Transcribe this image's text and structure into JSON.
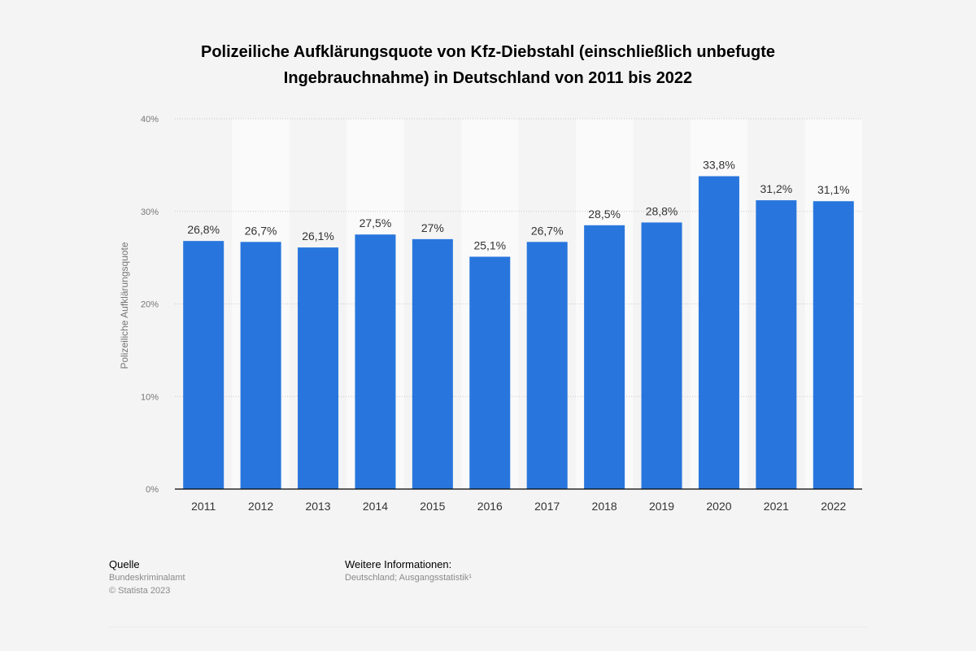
{
  "chart_data": {
    "type": "bar",
    "title": "Polizeiliche Aufklärungsquote von Kfz-Diebstahl (einschließlich unbefugte Ingebrauchnahme) in Deutschland von 2011 bis 2022",
    "title_lines": [
      "Polizeiliche Aufklärungsquote von Kfz-Diebstahl (einschließlich unbefugte",
      "Ingebrauchnahme) in Deutschland von 2011 bis 2022"
    ],
    "ylabel": "Polizeiliche Aufklärungsquote",
    "xlabel": "",
    "categories": [
      "2011",
      "2012",
      "2013",
      "2014",
      "2015",
      "2016",
      "2017",
      "2018",
      "2019",
      "2020",
      "2021",
      "2022"
    ],
    "values": [
      26.8,
      26.7,
      26.1,
      27.5,
      27,
      25.1,
      26.7,
      28.5,
      28.8,
      33.8,
      31.2,
      31.1
    ],
    "value_labels": [
      "26,8%",
      "26,7%",
      "26,1%",
      "27,5%",
      "27%",
      "25,1%",
      "26,7%",
      "28,5%",
      "28,8%",
      "33,8%",
      "31,2%",
      "31,1%"
    ],
    "ylim": [
      0,
      40
    ],
    "yticks": [
      {
        "value": 0,
        "label": "0%"
      },
      {
        "value": 10,
        "label": "10%"
      },
      {
        "value": 20,
        "label": "20%"
      },
      {
        "value": 30,
        "label": "30%"
      },
      {
        "value": 40,
        "label": "40%"
      }
    ],
    "grid": true,
    "bar_color": "#2876dd"
  },
  "footer": {
    "source_heading": "Quelle",
    "source_lines": [
      "Bundeskriminalamt",
      "© Statista 2023"
    ],
    "info_heading": "Weitere Informationen:",
    "info_lines": [
      "Deutschland; Ausgangsstatistik¹"
    ]
  }
}
